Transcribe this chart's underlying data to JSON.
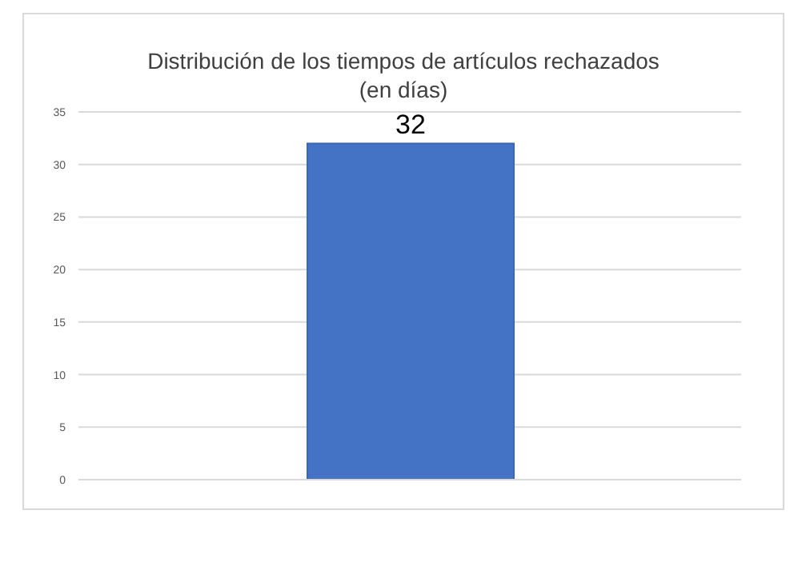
{
  "chart_data": {
    "type": "bar",
    "title": "Distribución de los tiempos de artículos rechazados\n(en días)",
    "categories": [
      null
    ],
    "values": [
      32
    ],
    "color": "#4472c4",
    "ylim": [
      0,
      35
    ],
    "yticks": [
      0,
      5,
      10,
      15,
      20,
      25,
      30,
      35
    ],
    "grid": "y",
    "data_labels": true
  }
}
